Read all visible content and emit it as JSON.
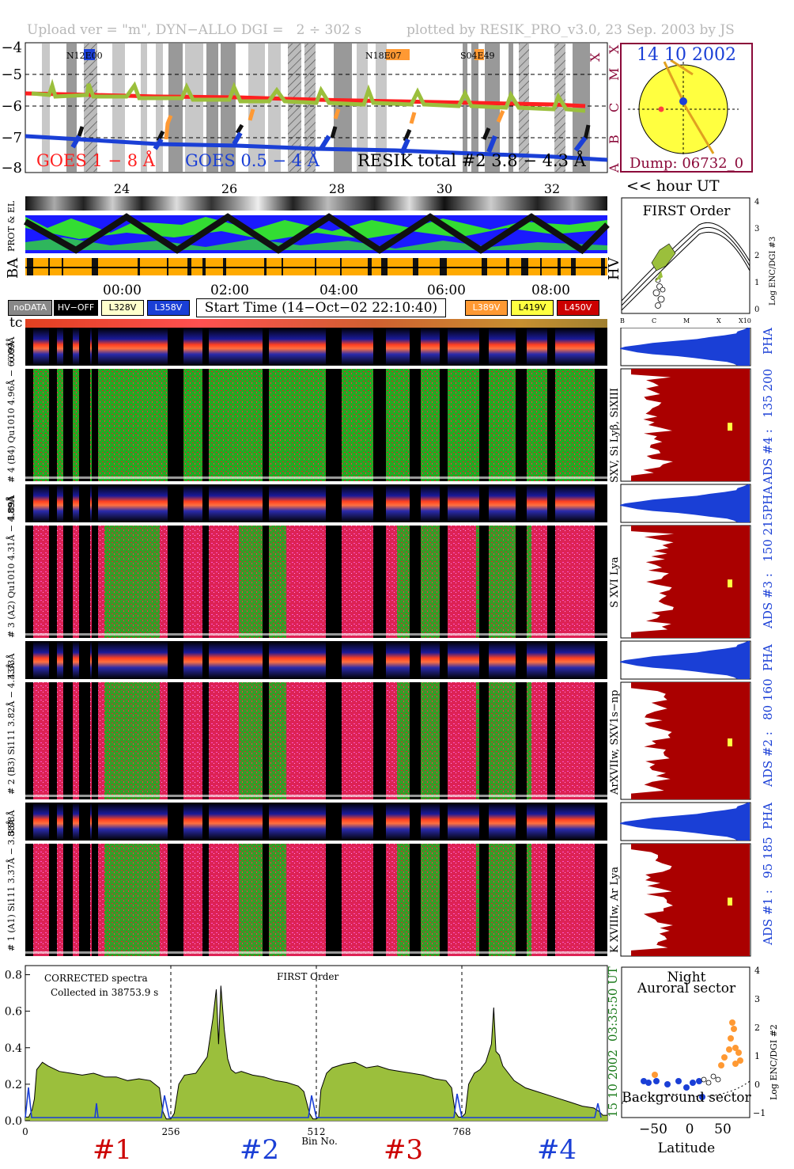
{
  "header": {
    "left": "Upload ver = \"m\", DYN−ALLO DGI =   2 ÷ 302 s",
    "right": "plotted by RESIK_PRO_v3.0, 23 Sep. 2003 by JS"
  },
  "goes_panel": {
    "y_ticks": [
      "−4",
      "−5",
      "−6",
      "−7",
      "−8"
    ],
    "class_letters": [
      "X",
      "M",
      "C",
      "B",
      "A"
    ],
    "x_ticks": [
      "24",
      "26",
      "28",
      "30",
      "32"
    ],
    "axis_note": "<< hour UT",
    "legend_goes1": "GOES 1 − 8 Å",
    "legend_goes2": "GOES 0.5 − 4 Å",
    "legend_resik": "RESIK total #2  3.8 − 4.3 Å",
    "flare_labels": [
      "N12E00",
      "N18E07",
      "S04E49"
    ],
    "colors": {
      "goes_long": "#ff2020",
      "goes_short": "#1a3fd6",
      "resik": "#a0c040"
    }
  },
  "sun_panel": {
    "date": "14 10 2002",
    "dump": "Dump: 06732_0",
    "colors": {
      "disk": "#ffff40",
      "border": "#8b0a3a"
    }
  },
  "status_strips": {
    "label_prot": "PROT & EL",
    "label_ba": "BA",
    "label_hv": "HV",
    "time_ticks": [
      "00:00",
      "02:00",
      "04:00",
      "06:00",
      "08:00"
    ]
  },
  "first_order_panel": {
    "title": "FIRST Order",
    "y_ticks": [
      "0",
      "1",
      "2",
      "3",
      "4"
    ],
    "x_ticks": [
      "B",
      "C",
      "M",
      "X",
      "X10"
    ],
    "ylabel": "Log ENC/DGI #3"
  },
  "legend": {
    "nodata": "noDATA",
    "hvoff": "HV−OFF",
    "l328": "L328V",
    "l358": "L358V",
    "start_time": "Start Time (14−Oct−02 22:10:40)",
    "l389": "L389V",
    "l419": "L419V",
    "l450": "L450V",
    "tc": "tc"
  },
  "channels": [
    {
      "id": "ch4",
      "range": "6.09Å",
      "left_label": "# 4 (B4) Qu1010 4.96Å − 6.09Å",
      "species": "SXV, Si Lyβ, SiXIII",
      "ads": "ADS #4 :   135 200",
      "pha": "PHA"
    },
    {
      "id": "ch3",
      "range": "4.89Å",
      "left_label": "# 3 (A2) Qu1010 4.31Å − 4.89Å",
      "species": "S XVI Lya",
      "ads": "ADS #3 :   150 215",
      "pha": "PHA"
    },
    {
      "id": "ch2",
      "range": "4.33Å",
      "left_label": "# 2 (B3) Si111 3.82Å − 4.33Å",
      "species": "ArXVIIw, SXV1s−np",
      "ads": "ADS #2 :   80 160",
      "pha": "PHA"
    },
    {
      "id": "ch1",
      "range": "3.88Å",
      "left_label": "# 1 (A1) Si111 3.37Å − 3.88Å",
      "species": "K XVIIIw, Ar Lya",
      "ads": "ADS #1 :   95 185",
      "pha": "PHA"
    }
  ],
  "spectrum_panel": {
    "title1": "CORRECTED spectra",
    "title2": "Collected in 38753.9 s",
    "order": "FIRST Order",
    "side_time": "03:35:50 UT",
    "side_date": "15 10 2002",
    "xlabel": "Bin No.",
    "section_labels": [
      "#1",
      "#2",
      "#3",
      "#4"
    ]
  },
  "night_panel": {
    "title1": "Night",
    "title2": "Auroral sector",
    "bottom": "Background sector",
    "xlabel": "Latitude",
    "ylabel": "Log ENC/DGI #2",
    "y_ticks": [
      "−1",
      "0",
      "1",
      "2",
      "3",
      "4"
    ],
    "x_ticks": [
      "−50",
      "0",
      "50"
    ]
  },
  "chart_data": {
    "type": "line",
    "title": "CORRECTED spectra",
    "xlabel": "Bin No.",
    "ylabel": "",
    "xlim": [
      0,
      1024
    ],
    "ylim": [
      0,
      0.85
    ],
    "y_ticks": [
      "0.0",
      "0.2",
      "0.4",
      "0.6",
      "0.8"
    ],
    "x_ticks": [
      "0",
      "256",
      "512",
      "768"
    ],
    "section_boundaries": [
      256,
      512,
      768
    ],
    "series": [
      {
        "x": [
          0,
          6,
          12,
          16,
          20,
          30,
          40,
          60,
          80,
          100,
          120,
          140,
          160,
          180,
          200,
          220,
          236,
          242,
          248,
          256,
          262,
          270,
          280,
          300,
          320,
          330,
          336,
          340,
          344,
          350,
          356,
          362,
          370,
          380,
          400,
          420,
          440,
          460,
          480,
          490,
          500,
          506,
          512,
          516,
          520,
          530,
          540,
          560,
          580,
          600,
          620,
          640,
          660,
          680,
          700,
          720,
          740,
          750,
          756,
          762,
          768,
          774,
          780,
          790,
          800,
          810,
          820,
          824,
          828,
          834,
          840,
          850,
          860,
          880,
          900,
          920,
          940,
          960,
          980,
          1000,
          1010,
          1016,
          1024
        ],
        "values": [
          0.02,
          0.02,
          0.06,
          0.12,
          0.28,
          0.32,
          0.3,
          0.27,
          0.26,
          0.25,
          0.26,
          0.24,
          0.24,
          0.22,
          0.23,
          0.22,
          0.18,
          0.05,
          0.01,
          0.01,
          0.04,
          0.2,
          0.25,
          0.26,
          0.35,
          0.56,
          0.72,
          0.42,
          0.74,
          0.5,
          0.34,
          0.28,
          0.26,
          0.27,
          0.25,
          0.24,
          0.22,
          0.21,
          0.19,
          0.16,
          0.04,
          0.01,
          0.01,
          0.02,
          0.17,
          0.26,
          0.29,
          0.31,
          0.32,
          0.29,
          0.3,
          0.28,
          0.27,
          0.26,
          0.25,
          0.23,
          0.22,
          0.18,
          0.05,
          0.02,
          0.02,
          0.04,
          0.2,
          0.26,
          0.28,
          0.32,
          0.42,
          0.62,
          0.38,
          0.36,
          0.3,
          0.26,
          0.22,
          0.18,
          0.16,
          0.14,
          0.12,
          0.1,
          0.08,
          0.07,
          0.05,
          0.03,
          0.03
        ]
      }
    ]
  }
}
